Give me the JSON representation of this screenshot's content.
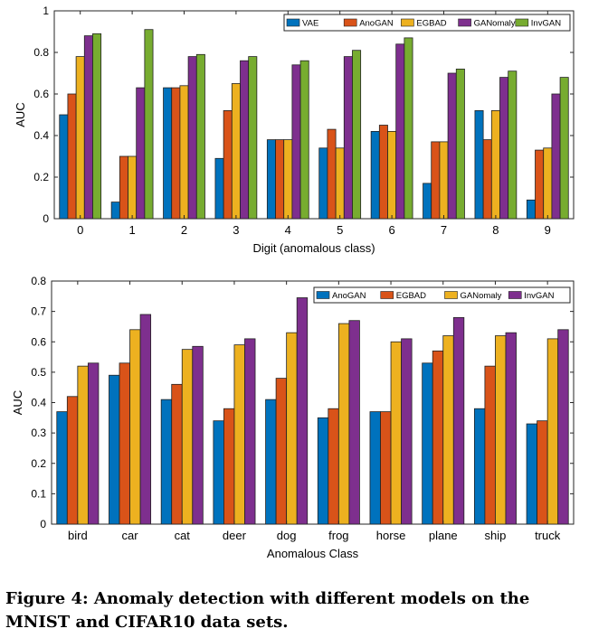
{
  "colors": {
    "vae": "#0072bd",
    "anogan": "#d95319",
    "egbad": "#edb120",
    "ganomaly": "#7e2f8e",
    "invgan": "#77ac30"
  },
  "chart_data": [
    {
      "type": "bar",
      "categories": [
        "0",
        "1",
        "2",
        "3",
        "4",
        "5",
        "6",
        "7",
        "8",
        "9"
      ],
      "xlabel": "Digit (anomalous class)",
      "ylabel": "AUC",
      "ylim": [
        0,
        1
      ],
      "yticks": [
        "0",
        "0.2",
        "0.4",
        "0.6",
        "0.8",
        "1"
      ],
      "yticks_values": [
        0,
        0.2,
        0.4,
        0.6,
        0.8,
        1.0
      ],
      "legend_position": "top-right",
      "series": [
        {
          "name": "VAE",
          "color_key": "vae",
          "values": [
            0.5,
            0.08,
            0.63,
            0.29,
            0.38,
            0.34,
            0.42,
            0.17,
            0.52,
            0.09
          ]
        },
        {
          "name": "AnoGAN",
          "color_key": "anogan",
          "values": [
            0.6,
            0.3,
            0.63,
            0.52,
            0.38,
            0.43,
            0.45,
            0.37,
            0.38,
            0.33
          ]
        },
        {
          "name": "EGBAD",
          "color_key": "egbad",
          "values": [
            0.78,
            0.3,
            0.64,
            0.65,
            0.38,
            0.34,
            0.42,
            0.37,
            0.52,
            0.34
          ]
        },
        {
          "name": "GANomaly",
          "color_key": "ganomaly",
          "values": [
            0.88,
            0.63,
            0.78,
            0.76,
            0.74,
            0.78,
            0.84,
            0.7,
            0.68,
            0.6
          ]
        },
        {
          "name": "InvGAN",
          "color_key": "invgan",
          "values": [
            0.89,
            0.91,
            0.79,
            0.78,
            0.76,
            0.81,
            0.87,
            0.72,
            0.71,
            0.68
          ]
        }
      ]
    },
    {
      "type": "bar",
      "categories": [
        "bird",
        "car",
        "cat",
        "deer",
        "dog",
        "frog",
        "horse",
        "plane",
        "ship",
        "truck"
      ],
      "xlabel": "Anomalous Class",
      "ylabel": "AUC",
      "ylim": [
        0,
        0.8
      ],
      "yticks": [
        "0",
        "0.1",
        "0.2",
        "0.3",
        "0.4",
        "0.5",
        "0.6",
        "0.7",
        "0.8"
      ],
      "yticks_values": [
        0,
        0.1,
        0.2,
        0.3,
        0.4,
        0.5,
        0.6,
        0.7,
        0.8
      ],
      "legend_position": "top-right",
      "series": [
        {
          "name": "AnoGAN",
          "color_key": "vae",
          "values": [
            0.37,
            0.49,
            0.41,
            0.34,
            0.41,
            0.35,
            0.37,
            0.53,
            0.38,
            0.33
          ]
        },
        {
          "name": "EGBAD",
          "color_key": "anogan",
          "values": [
            0.42,
            0.53,
            0.46,
            0.38,
            0.48,
            0.38,
            0.37,
            0.57,
            0.52,
            0.34
          ]
        },
        {
          "name": "GANomaly",
          "color_key": "egbad",
          "values": [
            0.52,
            0.64,
            0.575,
            0.59,
            0.63,
            0.66,
            0.6,
            0.62,
            0.62,
            0.61
          ]
        },
        {
          "name": "InvGAN",
          "color_key": "ganomaly",
          "values": [
            0.53,
            0.69,
            0.585,
            0.61,
            0.745,
            0.67,
            0.61,
            0.68,
            0.63,
            0.64
          ]
        }
      ]
    }
  ],
  "caption": "Figure 4: Anomaly detection with different models on the MNIST and CIFAR10 data sets."
}
